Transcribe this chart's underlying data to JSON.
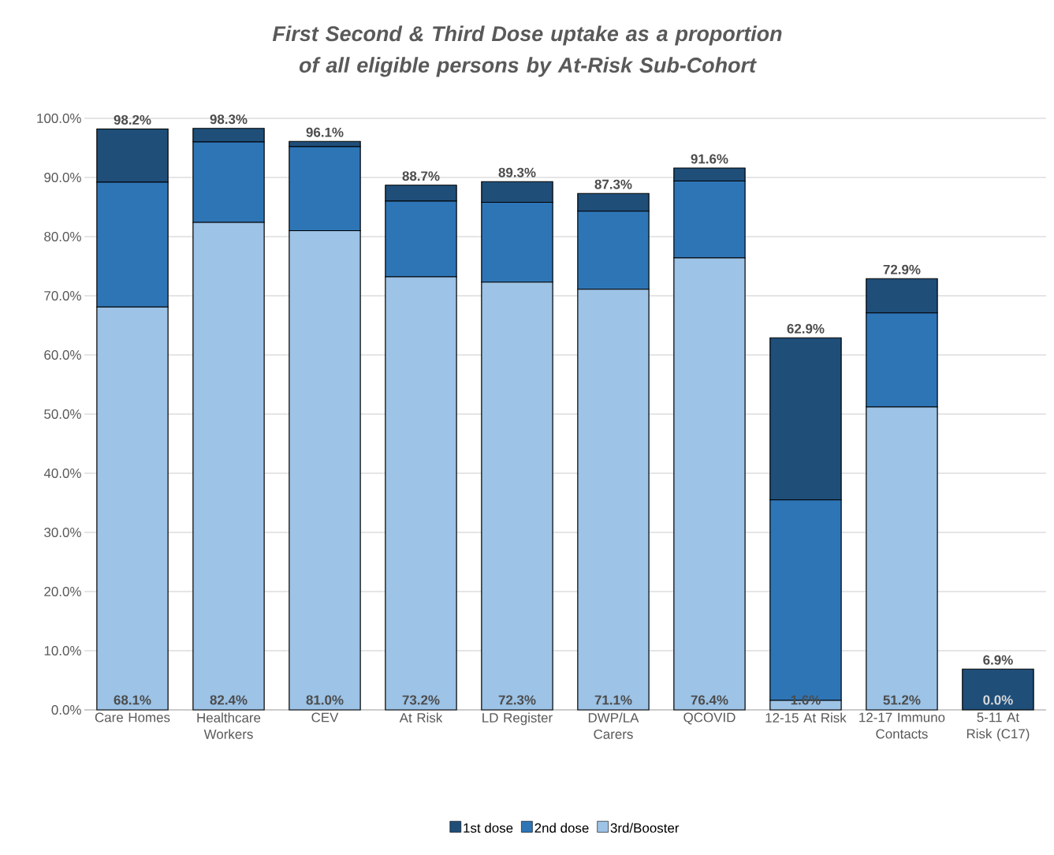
{
  "chart_data": {
    "type": "bar",
    "stacked": true,
    "title": "First Second & Third Dose uptake as a proportion of all eligible persons by At-Risk Sub-Cohort",
    "categories": [
      "Care Homes",
      "Healthcare Workers",
      "CEV",
      "At Risk",
      "LD Register",
      "DWP/LA Carers",
      "QCOVID",
      "12-15 At Risk",
      "12-17 Immuno Contacts",
      "5-11 At Risk (C17)"
    ],
    "series": [
      {
        "name": "3rd/Booster",
        "color": "#9dc3e6",
        "values": [
          68.1,
          82.4,
          81.0,
          73.2,
          72.3,
          71.1,
          76.4,
          1.6,
          51.2,
          0.0
        ],
        "value_labels": [
          "68.1%",
          "82.4%",
          "81.0%",
          "73.2%",
          "72.3%",
          "71.1%",
          "76.4%",
          "1.6%",
          "51.2%",
          "0.0%"
        ]
      },
      {
        "name": "2nd dose",
        "color": "#2e75b6",
        "values": [
          21.1,
          13.6,
          14.2,
          12.8,
          13.5,
          13.2,
          13.0,
          33.9,
          15.9,
          0.0
        ]
      },
      {
        "name": "1st dose",
        "color": "#1f4e79",
        "values": [
          9.0,
          2.3,
          0.9,
          2.7,
          3.5,
          3.0,
          2.2,
          27.4,
          5.8,
          6.9
        ]
      }
    ],
    "totals": [
      "98.2%",
      "98.3%",
      "96.1%",
      "88.7%",
      "89.3%",
      "87.3%",
      "91.6%",
      "62.9%",
      "72.9%",
      "6.9%"
    ],
    "ylim": [
      0,
      100
    ],
    "yticks": [
      {
        "value": 0,
        "label": "0.0%"
      },
      {
        "value": 10,
        "label": "10.0%"
      },
      {
        "value": 20,
        "label": "20.0%"
      },
      {
        "value": 30,
        "label": "30.0%"
      },
      {
        "value": 40,
        "label": "40.0%"
      },
      {
        "value": 50,
        "label": "50.0%"
      },
      {
        "value": 60,
        "label": "60.0%"
      },
      {
        "value": 70,
        "label": "70.0%"
      },
      {
        "value": 80,
        "label": "80.0%"
      },
      {
        "value": 90,
        "label": "90.0%"
      },
      {
        "value": 100,
        "label": "100.0%"
      }
    ],
    "grid": "y",
    "legend": "bottom"
  }
}
